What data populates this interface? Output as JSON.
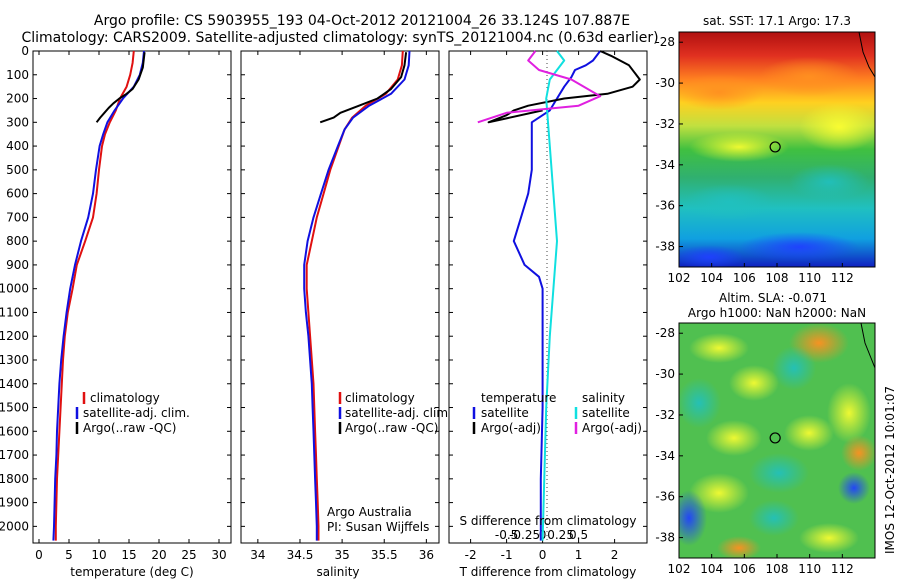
{
  "header": {
    "line1": "Argo profile: CS 5903955_193 04-Oct-2012 20121004_26 33.124S 107.887E",
    "line2": "Climatology: CARS2009. Satellite-adjusted climatology: synTS_20121004.nc (0.63d earlier)"
  },
  "side_label": "IMOS 12-Oct-2012 10:01:07",
  "colors": {
    "climatology": "#e01010",
    "satellite": "#1010e0",
    "argo": "#000000",
    "sal_satellite": "#10e0e0",
    "sal_argo": "#e020e0"
  },
  "chart_data": [
    {
      "type": "line",
      "panel": "temperature",
      "xlabel": "temperature (deg C)",
      "ylabel": "",
      "xlim": [
        -1,
        32
      ],
      "ylim": [
        2070,
        0
      ],
      "xticks": [
        0,
        5,
        10,
        15,
        20,
        25,
        30
      ],
      "yticks": [
        0,
        100,
        200,
        300,
        400,
        500,
        600,
        700,
        800,
        900,
        1000,
        1100,
        1200,
        1300,
        1400,
        1500,
        1600,
        1700,
        1800,
        1900,
        2000
      ],
      "legend": [
        "climatology",
        "satellite-adj. clim.",
        "Argo(..raw -QC)"
      ],
      "series": [
        {
          "name": "climatology",
          "color": "#e01010",
          "points": [
            [
              15.8,
              0
            ],
            [
              15.6,
              50
            ],
            [
              15.2,
              100
            ],
            [
              14.6,
              150
            ],
            [
              13.5,
              200
            ],
            [
              12.8,
              250
            ],
            [
              11.8,
              300
            ],
            [
              11.0,
              350
            ],
            [
              10.5,
              400
            ],
            [
              10.0,
              500
            ],
            [
              9.6,
              600
            ],
            [
              9.0,
              700
            ],
            [
              7.7,
              800
            ],
            [
              6.3,
              900
            ],
            [
              5.6,
              1000
            ],
            [
              4.8,
              1100
            ],
            [
              4.3,
              1200
            ],
            [
              4.0,
              1300
            ],
            [
              3.8,
              1400
            ],
            [
              3.6,
              1500
            ],
            [
              3.4,
              1600
            ],
            [
              3.2,
              1700
            ],
            [
              3.0,
              1800
            ],
            [
              2.9,
              1900
            ],
            [
              2.8,
              2000
            ],
            [
              2.8,
              2060
            ]
          ]
        },
        {
          "name": "satellite-adj. clim.",
          "color": "#1010e0",
          "points": [
            [
              17.5,
              0
            ],
            [
              17.3,
              50
            ],
            [
              16.8,
              100
            ],
            [
              15.8,
              150
            ],
            [
              14.0,
              200
            ],
            [
              12.6,
              250
            ],
            [
              11.4,
              300
            ],
            [
              10.7,
              350
            ],
            [
              10.1,
              400
            ],
            [
              9.5,
              500
            ],
            [
              9.0,
              600
            ],
            [
              8.2,
              700
            ],
            [
              7.0,
              800
            ],
            [
              6.0,
              900
            ],
            [
              5.2,
              1000
            ],
            [
              4.6,
              1100
            ],
            [
              4.1,
              1200
            ],
            [
              3.7,
              1300
            ],
            [
              3.4,
              1400
            ],
            [
              3.2,
              1500
            ],
            [
              3.0,
              1600
            ],
            [
              2.9,
              1700
            ],
            [
              2.7,
              1800
            ],
            [
              2.6,
              1900
            ],
            [
              2.5,
              2000
            ],
            [
              2.4,
              2060
            ]
          ]
        },
        {
          "name": "Argo(..raw -QC)",
          "color": "#000000",
          "points": [
            [
              17.6,
              5
            ],
            [
              17.3,
              70
            ],
            [
              16.6,
              120
            ],
            [
              15.6,
              160
            ],
            [
              14.6,
              180
            ],
            [
              13.4,
              200
            ],
            [
              12.4,
              220
            ],
            [
              11.6,
              240
            ],
            [
              10.9,
              260
            ],
            [
              10.2,
              280
            ],
            [
              9.6,
              300
            ]
          ]
        }
      ]
    },
    {
      "type": "line",
      "panel": "salinity",
      "xlabel": "salinity",
      "ylabel": "",
      "xlim": [
        33.8,
        36.15
      ],
      "ylim": [
        2070,
        0
      ],
      "xticks": [
        34,
        34.5,
        35,
        35.5,
        36
      ],
      "legend": [
        "climatology",
        "satellite-adj. clim.",
        "Argo(..raw -QC)"
      ],
      "annotation": [
        "Argo Australia",
        "PI: Susan Wijffels"
      ],
      "series": [
        {
          "name": "climatology",
          "color": "#e01010",
          "points": [
            [
              35.72,
              0
            ],
            [
              35.71,
              60
            ],
            [
              35.66,
              120
            ],
            [
              35.52,
              180
            ],
            [
              35.28,
              230
            ],
            [
              35.12,
              280
            ],
            [
              35.03,
              330
            ],
            [
              34.96,
              400
            ],
            [
              34.86,
              500
            ],
            [
              34.78,
              600
            ],
            [
              34.7,
              700
            ],
            [
              34.64,
              800
            ],
            [
              34.58,
              900
            ],
            [
              34.58,
              1000
            ],
            [
              34.6,
              1100
            ],
            [
              34.62,
              1200
            ],
            [
              34.64,
              1300
            ],
            [
              34.66,
              1400
            ],
            [
              34.67,
              1500
            ],
            [
              34.68,
              1600
            ],
            [
              34.69,
              1700
            ],
            [
              34.7,
              1800
            ],
            [
              34.71,
              1900
            ],
            [
              34.72,
              2000
            ],
            [
              34.72,
              2060
            ]
          ]
        },
        {
          "name": "satellite-adj. clim.",
          "color": "#1010e0",
          "points": [
            [
              35.8,
              0
            ],
            [
              35.79,
              60
            ],
            [
              35.74,
              120
            ],
            [
              35.58,
              180
            ],
            [
              35.32,
              230
            ],
            [
              35.13,
              280
            ],
            [
              35.03,
              330
            ],
            [
              34.95,
              400
            ],
            [
              34.84,
              500
            ],
            [
              34.75,
              600
            ],
            [
              34.66,
              700
            ],
            [
              34.59,
              800
            ],
            [
              34.55,
              900
            ],
            [
              34.55,
              1000
            ],
            [
              34.57,
              1100
            ],
            [
              34.6,
              1200
            ],
            [
              34.62,
              1300
            ],
            [
              34.64,
              1400
            ],
            [
              34.65,
              1500
            ],
            [
              34.66,
              1600
            ],
            [
              34.67,
              1700
            ],
            [
              34.68,
              1800
            ],
            [
              34.69,
              1900
            ],
            [
              34.7,
              2000
            ],
            [
              34.7,
              2060
            ]
          ]
        },
        {
          "name": "Argo(..raw -QC)",
          "color": "#000000",
          "points": [
            [
              35.76,
              5
            ],
            [
              35.74,
              60
            ],
            [
              35.7,
              110
            ],
            [
              35.58,
              160
            ],
            [
              35.42,
              200
            ],
            [
              35.2,
              230
            ],
            [
              34.98,
              260
            ],
            [
              34.9,
              280
            ],
            [
              34.74,
              300
            ]
          ]
        }
      ]
    },
    {
      "type": "line",
      "panel": "difference",
      "xlabel": "T difference from climatology",
      "xlabel_top": "S difference from climatology",
      "xlim": [
        -2.6,
        2.9
      ],
      "ylim": [
        2070,
        0
      ],
      "xticks": [
        -2,
        -1,
        0,
        1,
        2
      ],
      "xticks_top": [
        -0.5,
        -0.25,
        0,
        0.25,
        0.5
      ],
      "legend_temperature": {
        "title": "temperature",
        "items": [
          "satellite",
          "Argo(-adj)"
        ]
      },
      "legend_salinity": {
        "title": "salinity",
        "items": [
          "satellite",
          "Argo(-adj)"
        ]
      },
      "series": [
        {
          "name": "temperature satellite",
          "color": "#1010e0",
          "points": [
            [
              1.6,
              0
            ],
            [
              1.4,
              40
            ],
            [
              1.2,
              60
            ],
            [
              0.9,
              80
            ],
            [
              0.8,
              110
            ],
            [
              0.6,
              150
            ],
            [
              0.4,
              200
            ],
            [
              0.2,
              250
            ],
            [
              -0.3,
              300
            ],
            [
              -0.3,
              400
            ],
            [
              -0.3,
              500
            ],
            [
              -0.4,
              600
            ],
            [
              -0.6,
              700
            ],
            [
              -0.8,
              800
            ],
            [
              -0.5,
              900
            ],
            [
              -0.1,
              950
            ],
            [
              0.0,
              1000
            ],
            [
              0.0,
              1200
            ],
            [
              0.0,
              1500
            ],
            [
              -0.05,
              1800
            ],
            [
              -0.05,
              2060
            ]
          ]
        },
        {
          "name": "temperature Argo(-adj)",
          "color": "#000000",
          "points": [
            [
              1.6,
              0
            ],
            [
              1.9,
              20
            ],
            [
              2.4,
              60
            ],
            [
              2.7,
              120
            ],
            [
              2.5,
              150
            ],
            [
              1.8,
              180
            ],
            [
              0.6,
              200
            ],
            [
              -0.4,
              230
            ],
            [
              -0.8,
              250
            ],
            [
              -1.0,
              270
            ],
            [
              -1.5,
              300
            ],
            [
              0.0,
              250
            ]
          ]
        },
        {
          "name": "salinity satellite",
          "color": "#10e0e0",
          "points": [
            [
              0.2,
              0
            ],
            [
              0.3,
              40
            ],
            [
              0.1,
              120
            ],
            [
              0.05,
              200
            ],
            [
              0.1,
              400
            ],
            [
              0.15,
              600
            ],
            [
              0.2,
              800
            ],
            [
              0.15,
              1000
            ],
            [
              0.1,
              1200
            ],
            [
              0.05,
              1500
            ],
            [
              0.0,
              2060
            ]
          ]
        },
        {
          "name": "salinity Argo(-adj)",
          "color": "#e020e0",
          "points": [
            [
              -0.1,
              0
            ],
            [
              -0.2,
              40
            ],
            [
              -0.05,
              80
            ],
            [
              0.4,
              120
            ],
            [
              0.8,
              190
            ],
            [
              0.5,
              230
            ],
            [
              -0.5,
              260
            ],
            [
              -0.9,
              300
            ]
          ]
        }
      ]
    },
    {
      "type": "heatmap",
      "panel": "sst_map",
      "title": "sat. SST: 17.1  Argo: 17.3",
      "xlim": [
        102,
        114
      ],
      "ylim": [
        -39,
        -27.5
      ],
      "xticks": [
        102,
        104,
        106,
        108,
        110,
        112
      ],
      "yticks": [
        -28,
        -30,
        -32,
        -34,
        -36,
        -38
      ],
      "marker": {
        "lon": 107.887,
        "lat": -33.124
      }
    },
    {
      "type": "heatmap",
      "panel": "sla_map",
      "title": "Altim. SLA: -0.071",
      "subtitle": "Argo h1000: NaN  h2000: NaN",
      "xlim": [
        102,
        114
      ],
      "ylim": [
        -39,
        -27.5
      ],
      "xticks": [
        102,
        104,
        106,
        108,
        110,
        112
      ],
      "yticks": [
        -28,
        -30,
        -32,
        -34,
        -36,
        -38
      ],
      "marker": {
        "lon": 107.887,
        "lat": -33.124
      }
    }
  ]
}
